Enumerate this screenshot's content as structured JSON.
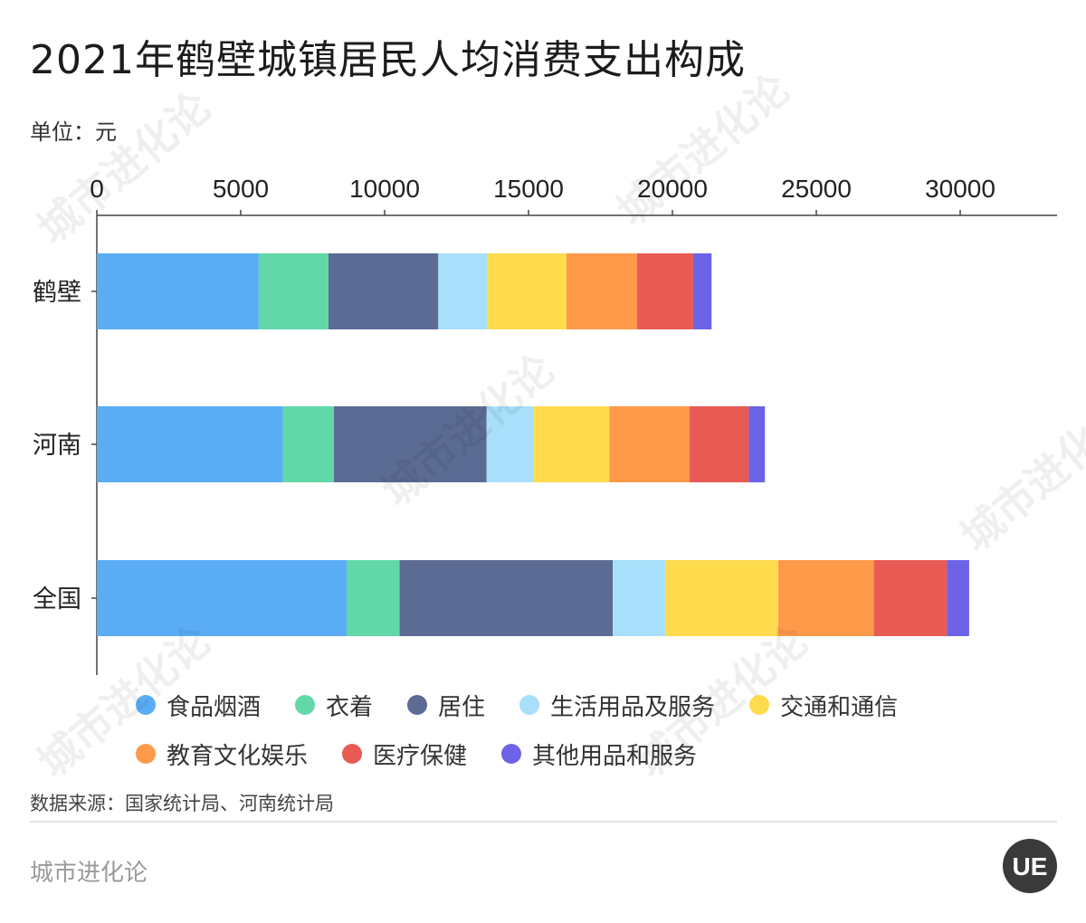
{
  "header": {
    "title": "2021年鹤壁城镇居民人均消费支出构成",
    "unit": "单位：元"
  },
  "footer": {
    "source": "数据来源：国家统计局、河南统计局",
    "brand": "城市进化论",
    "logo_text": "UE"
  },
  "watermark_text": "城市进化论",
  "chart_data": {
    "type": "bar",
    "orientation": "horizontal",
    "stacked": true,
    "categories": [
      "鹤壁",
      "河南",
      "全国"
    ],
    "series": [
      {
        "name": "食品烟酒",
        "color": "#5AADF5",
        "values": [
          5625,
          6465,
          8678
        ]
      },
      {
        "name": "衣着",
        "color": "#62D8A9",
        "values": [
          2425,
          1775,
          1843
        ]
      },
      {
        "name": "居住",
        "color": "#5B6B93",
        "values": [
          3815,
          5305,
          7405
        ]
      },
      {
        "name": "生活用品及服务",
        "color": "#A8DFFB",
        "values": [
          1690,
          1640,
          1820
        ]
      },
      {
        "name": "交通和通信",
        "color": "#FFDB4E",
        "values": [
          2765,
          2630,
          3930
        ]
      },
      {
        "name": "教育文化娱乐",
        "color": "#FF9A4B",
        "values": [
          2445,
          2785,
          3325
        ]
      },
      {
        "name": "医疗保健",
        "color": "#E85B55",
        "values": [
          1955,
          2055,
          2540
        ]
      },
      {
        "name": "其他用品和服务",
        "color": "#6C63E6",
        "values": [
          640,
          560,
          770
        ]
      }
    ],
    "xlim": [
      0,
      33000
    ],
    "xticks": [
      0,
      5000,
      10000,
      15000,
      20000,
      25000,
      30000
    ],
    "xticks_labels": [
      "0",
      "5000",
      "10000",
      "15000",
      "20000",
      "25000",
      "30000"
    ],
    "xaxis_position": "top",
    "grid": false,
    "legend_position": "bottom"
  }
}
